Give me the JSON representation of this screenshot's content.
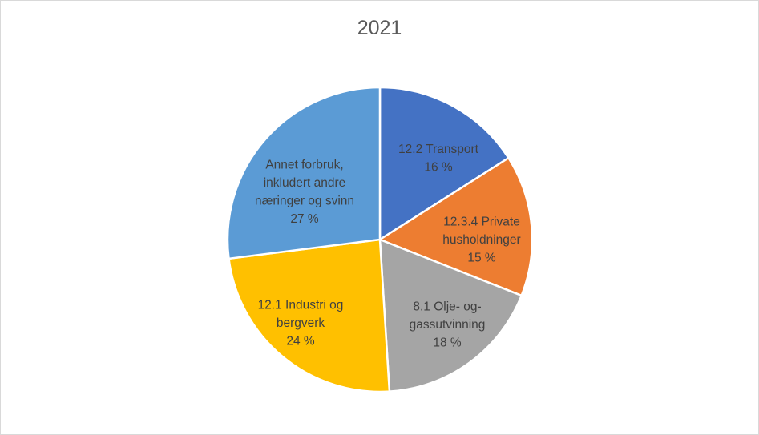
{
  "chart_data": {
    "type": "pie",
    "title": "2021",
    "slices": [
      {
        "label_lines": [
          "12.2 Transport",
          "16 %"
        ],
        "value": 16,
        "color": "#4472C4"
      },
      {
        "label_lines": [
          "12.3.4 Private",
          "husholdninger",
          "15 %"
        ],
        "value": 15,
        "color": "#ED7D31"
      },
      {
        "label_lines": [
          "8.1 Olje- og-",
          "gassutvinning",
          "18 %"
        ],
        "value": 18,
        "color": "#A5A5A5"
      },
      {
        "label_lines": [
          "12.1 Industri og",
          "bergverk",
          "24 %"
        ],
        "value": 24,
        "color": "#FFC000"
      },
      {
        "label_lines": [
          "Annet forbruk,",
          "inkludert andre",
          "næringer og svinn",
          "27 %"
        ],
        "value": 27,
        "color": "#5B9BD5"
      }
    ]
  }
}
